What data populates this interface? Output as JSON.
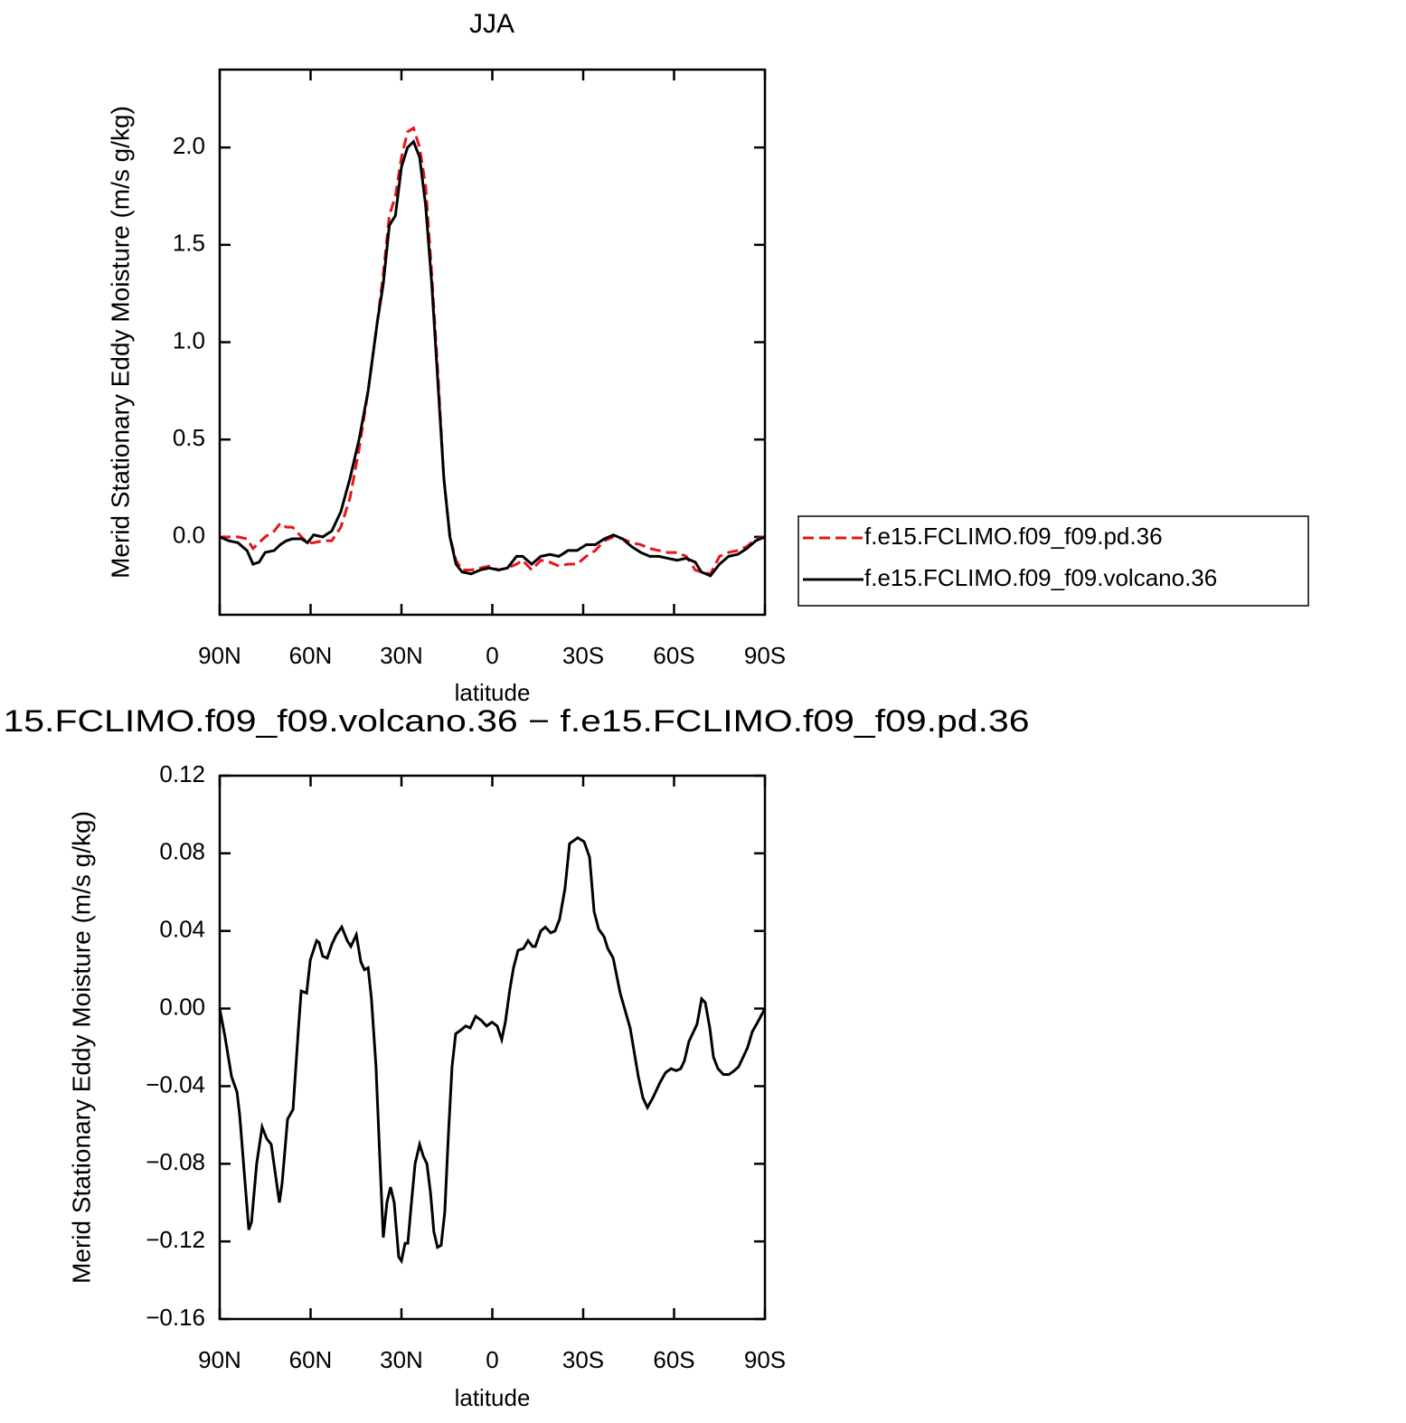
{
  "chart_data": [
    {
      "type": "line",
      "title": "JJA",
      "xlabel": "latitude",
      "ylabel": "Merid Stationary Eddy Moisture (m/s g/kg)",
      "xlim": [
        90,
        -90
      ],
      "xticks": [
        {
          "value": 90,
          "label": "90N"
        },
        {
          "value": 60,
          "label": "60N"
        },
        {
          "value": 30,
          "label": "30N"
        },
        0,
        {
          "value": -30,
          "label": "30S"
        },
        {
          "value": -60,
          "label": "60S"
        },
        {
          "value": -90,
          "label": "90S"
        }
      ],
      "ylim": [
        -0.4,
        2.4
      ],
      "yticks": [
        {
          "value": 0,
          "label": "0.0"
        },
        {
          "value": 0.5,
          "label": "0.5"
        },
        {
          "value": 1,
          "label": "1.0"
        },
        {
          "value": 1.5,
          "label": "1.5"
        },
        {
          "value": 2,
          "label": "2.0"
        }
      ],
      "x": [
        90,
        87,
        84,
        81,
        79,
        77,
        75,
        72,
        70,
        68,
        66,
        63,
        61,
        59,
        56,
        53,
        50,
        47,
        44,
        41,
        38,
        36,
        34,
        32,
        30,
        28,
        26,
        24,
        22,
        20,
        18,
        16,
        14,
        12,
        10,
        7,
        4,
        1,
        -2,
        -5,
        -8,
        -10,
        -13,
        -16,
        -19,
        -22,
        -25,
        -28,
        -31,
        -34,
        -37,
        -40,
        -43,
        -46,
        -49,
        -52,
        -55,
        -58,
        -61,
        -64,
        -67,
        -69,
        -72,
        -75,
        -78,
        -81,
        -84,
        -87,
        -90
      ],
      "series": [
        {
          "name": "f.e15.FCLIMO.f09_f09.pd.36",
          "color": "#e8141b",
          "linestyle": "dashed",
          "values": [
            0,
            0,
            0,
            -0.01,
            -0.06,
            -0.03,
            0,
            0.03,
            0.07,
            0.05,
            0.05,
            0,
            -0.03,
            -0.03,
            -0.02,
            -0.02,
            0.05,
            0.2,
            0.45,
            0.75,
            1.1,
            1.35,
            1.65,
            1.75,
            1.95,
            2.08,
            2.1,
            2.0,
            1.8,
            1.35,
            0.85,
            0.3,
            0,
            -0.12,
            -0.17,
            -0.17,
            -0.16,
            -0.15,
            -0.17,
            -0.16,
            -0.14,
            -0.12,
            -0.17,
            -0.12,
            -0.13,
            -0.15,
            -0.14,
            -0.14,
            -0.1,
            -0.07,
            -0.02,
            0,
            -0.01,
            -0.03,
            -0.04,
            -0.06,
            -0.07,
            -0.08,
            -0.08,
            -0.1,
            -0.17,
            -0.18,
            -0.19,
            -0.1,
            -0.08,
            -0.07,
            -0.05,
            -0.01,
            0
          ]
        },
        {
          "name": "f.e15.FCLIMO.f09_f09.volcano.36",
          "color": "#000000",
          "linestyle": "solid",
          "values": [
            0,
            -0.02,
            -0.03,
            -0.07,
            -0.14,
            -0.13,
            -0.08,
            -0.07,
            -0.04,
            -0.02,
            -0.01,
            -0.01,
            -0.03,
            0.01,
            0,
            0.03,
            0.13,
            0.3,
            0.5,
            0.75,
            1.1,
            1.3,
            1.6,
            1.65,
            1.9,
            2.0,
            2.03,
            1.95,
            1.7,
            1.3,
            0.8,
            0.3,
            0,
            -0.14,
            -0.18,
            -0.19,
            -0.17,
            -0.16,
            -0.17,
            -0.16,
            -0.1,
            -0.1,
            -0.14,
            -0.1,
            -0.09,
            -0.1,
            -0.07,
            -0.07,
            -0.04,
            -0.04,
            -0.01,
            0.01,
            -0.01,
            -0.05,
            -0.08,
            -0.1,
            -0.1,
            -0.11,
            -0.12,
            -0.11,
            -0.13,
            -0.18,
            -0.2,
            -0.14,
            -0.1,
            -0.09,
            -0.06,
            -0.02,
            0
          ]
        }
      ]
    },
    {
      "type": "line",
      "title": "15.FCLIMO.f09_f09.volcano.36 − f.e15.FCLIMO.f09_f09.pd.36",
      "xlabel": "latitude",
      "ylabel": "Merid Stationary Eddy Moisture (m/s g/kg)",
      "xlim": [
        90,
        -90
      ],
      "xticks": [
        {
          "value": 90,
          "label": "90N"
        },
        {
          "value": 60,
          "label": "60N"
        },
        {
          "value": 30,
          "label": "30N"
        },
        0,
        {
          "value": -30,
          "label": "30S"
        },
        {
          "value": -60,
          "label": "60S"
        },
        {
          "value": -90,
          "label": "90S"
        }
      ],
      "ylim": [
        -0.16,
        0.12
      ],
      "yticks": [
        {
          "value": -0.16,
          "label": "−0.16"
        },
        {
          "value": -0.12,
          "label": "−0.12"
        },
        {
          "value": -0.08,
          "label": "−0.08"
        },
        {
          "value": -0.04,
          "label": "−0.04"
        },
        {
          "value": 0,
          "label": "0.00"
        },
        0.04,
        0.08,
        0.12
      ],
      "color": "#000000",
      "x": [
        90,
        88.2,
        86.1,
        84.3,
        83.4,
        80.4,
        79.5,
        77.8,
        76,
        74.5,
        73,
        70.3,
        69.4,
        67.6,
        65.8,
        64,
        63.1,
        61.3,
        60.1,
        58,
        57.2,
        56,
        54.5,
        53,
        51.5,
        49.7,
        47.9,
        46.7,
        44.9,
        43.4,
        42.2,
        41,
        39.9,
        38.4,
        37.2,
        36,
        34.8,
        33.6,
        32.4,
        30.9,
        30,
        28.8,
        27.9,
        26.7,
        25.5,
        24,
        22.8,
        21.6,
        20.4,
        19.3,
        18.1,
        16.9,
        15.7,
        14.5,
        13.3,
        12.1,
        10.3,
        8.8,
        7.3,
        5.5,
        3.7,
        1.9,
        0.1,
        -1.6,
        -3.1,
        -4.3,
        -5.8,
        -7,
        -8.5,
        -10.3,
        -11.8,
        -13.3,
        -14.2,
        -16,
        -17.5,
        -19.3,
        -20.7,
        -22.2,
        -24,
        -25.5,
        -28.2,
        -30.3,
        -32.1,
        -33.6,
        -35.1,
        -36.9,
        -38.1,
        -39.9,
        -42.2,
        -45.5,
        -48.2,
        -49.7,
        -51.2,
        -53,
        -55.4,
        -57.2,
        -59,
        -60.7,
        -62.2,
        -63.4,
        -64.9,
        -66.4,
        -67.6,
        -69.1,
        -70.3,
        -71.8,
        -73,
        -74.5,
        -76.3,
        -78.1,
        -79.9,
        -81.3,
        -83.1,
        -84.3,
        -85.8,
        -87.6,
        -90
      ],
      "values": [
        0,
        -0.015,
        -0.035,
        -0.043,
        -0.055,
        -0.114,
        -0.11,
        -0.08,
        -0.061,
        -0.067,
        -0.07,
        -0.1,
        -0.09,
        -0.057,
        -0.052,
        -0.01,
        0.009,
        0.008,
        0.025,
        0.035,
        0.034,
        0.027,
        0.026,
        0.033,
        0.038,
        0.042,
        0.035,
        0.032,
        0.038,
        0.024,
        0.02,
        0.021,
        0.005,
        -0.03,
        -0.075,
        -0.118,
        -0.1,
        -0.092,
        -0.1,
        -0.128,
        -0.13,
        -0.121,
        -0.121,
        -0.1,
        -0.08,
        -0.07,
        -0.076,
        -0.08,
        -0.095,
        -0.115,
        -0.123,
        -0.122,
        -0.105,
        -0.065,
        -0.03,
        -0.013,
        -0.011,
        -0.009,
        -0.01,
        -0.004,
        -0.006,
        -0.009,
        -0.007,
        -0.009,
        -0.016,
        -0.007,
        0.01,
        0.021,
        0.03,
        0.031,
        0.035,
        0.032,
        0.032,
        0.04,
        0.042,
        0.039,
        0.04,
        0.046,
        0.062,
        0.085,
        0.088,
        0.086,
        0.078,
        0.05,
        0.041,
        0.037,
        0.031,
        0.026,
        0.008,
        -0.01,
        -0.035,
        -0.046,
        -0.051,
        -0.046,
        -0.038,
        -0.033,
        -0.031,
        -0.032,
        -0.031,
        -0.027,
        -0.017,
        -0.012,
        -0.008,
        0.005,
        0.003,
        -0.01,
        -0.025,
        -0.031,
        -0.034,
        -0.034,
        -0.032,
        -0.03,
        -0.024,
        -0.02,
        -0.012,
        -0.007,
        0
      ]
    }
  ]
}
